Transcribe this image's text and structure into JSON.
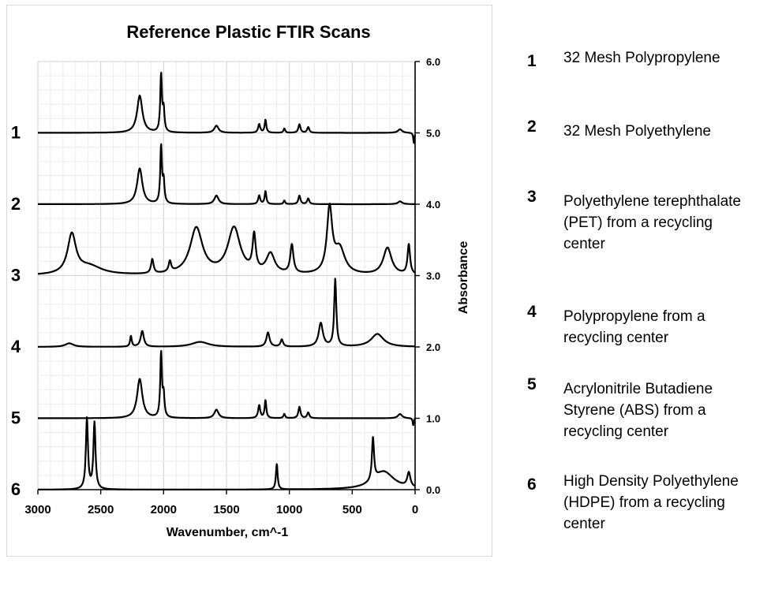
{
  "chart_data": {
    "type": "line",
    "title": "Reference Plastic FTIR Scans",
    "xlabel": "Wavenumber, cm^-1",
    "ylabel": "Absorbance",
    "xlim": [
      3000,
      0
    ],
    "ylim": [
      0.0,
      6.0
    ],
    "x_reversed": true,
    "grid": true,
    "xticks": [
      "3000",
      "2500",
      "2000",
      "1500",
      "1000",
      "500",
      "0"
    ],
    "yticks": [
      "6.0",
      "5.0",
      "4.0",
      "3.0",
      "2.0",
      "1.0",
      "0.0"
    ],
    "series_labels": [
      "1",
      "2",
      "3",
      "4",
      "5",
      "6"
    ],
    "series": [
      {
        "name": "1",
        "baseline": 5.0,
        "peaks": [
          [
            2190,
            0.52,
            25
          ],
          [
            2020,
            0.8,
            8
          ],
          [
            2000,
            0.3,
            8
          ],
          [
            1580,
            0.1,
            20
          ],
          [
            1240,
            0.12,
            10
          ],
          [
            1190,
            0.18,
            8
          ],
          [
            1040,
            0.06,
            8
          ],
          [
            920,
            0.12,
            10
          ],
          [
            850,
            0.08,
            10
          ],
          [
            120,
            0.05,
            20
          ]
        ],
        "dips": [
          [
            10,
            0.15,
            5
          ]
        ]
      },
      {
        "name": "2",
        "baseline": 4.0,
        "peaks": [
          [
            2190,
            0.5,
            25
          ],
          [
            2020,
            0.8,
            8
          ],
          [
            2000,
            0.3,
            8
          ],
          [
            1580,
            0.12,
            20
          ],
          [
            1240,
            0.12,
            10
          ],
          [
            1190,
            0.18,
            8
          ],
          [
            1040,
            0.05,
            8
          ],
          [
            920,
            0.12,
            10
          ],
          [
            850,
            0.08,
            10
          ],
          [
            120,
            0.04,
            20
          ]
        ],
        "dips": []
      },
      {
        "name": "3",
        "baseline": 3.0,
        "peaks": [
          [
            2730,
            0.55,
            40
          ],
          [
            2590,
            0.12,
            120
          ],
          [
            2090,
            0.2,
            12
          ],
          [
            1950,
            0.15,
            12
          ],
          [
            1740,
            0.65,
            60
          ],
          [
            1440,
            0.65,
            60
          ],
          [
            1280,
            0.5,
            15
          ],
          [
            1150,
            0.28,
            40
          ],
          [
            980,
            0.4,
            15
          ],
          [
            680,
            0.9,
            25
          ],
          [
            600,
            0.35,
            50
          ],
          [
            220,
            0.38,
            40
          ],
          [
            50,
            0.42,
            12
          ]
        ],
        "dips": []
      },
      {
        "name": "4",
        "baseline": 2.0,
        "peaks": [
          [
            2750,
            0.05,
            40
          ],
          [
            2260,
            0.15,
            8
          ],
          [
            2170,
            0.22,
            15
          ],
          [
            1710,
            0.07,
            80
          ],
          [
            1170,
            0.2,
            15
          ],
          [
            1060,
            0.1,
            12
          ],
          [
            750,
            0.33,
            20
          ],
          [
            635,
            0.95,
            10
          ],
          [
            300,
            0.18,
            60
          ]
        ],
        "dips": []
      },
      {
        "name": "5",
        "baseline": 1.0,
        "peaks": [
          [
            2190,
            0.55,
            25
          ],
          [
            2020,
            0.9,
            8
          ],
          [
            2000,
            0.3,
            8
          ],
          [
            1580,
            0.12,
            20
          ],
          [
            1240,
            0.18,
            10
          ],
          [
            1190,
            0.25,
            8
          ],
          [
            1040,
            0.06,
            8
          ],
          [
            920,
            0.16,
            10
          ],
          [
            850,
            0.08,
            10
          ],
          [
            120,
            0.06,
            20
          ]
        ],
        "dips": [
          [
            15,
            0.1,
            5
          ]
        ]
      },
      {
        "name": "6",
        "baseline": 0.0,
        "peaks": [
          [
            2610,
            0.99,
            10
          ],
          [
            2550,
            0.93,
            10
          ],
          [
            1100,
            0.36,
            8
          ],
          [
            335,
            0.6,
            10
          ],
          [
            250,
            0.25,
            100
          ],
          [
            50,
            0.2,
            15
          ]
        ],
        "dips": []
      }
    ]
  },
  "legend": [
    {
      "num": "1",
      "text": "32 Mesh Polypropylene"
    },
    {
      "num": "2",
      "text": "32 Mesh Polyethylene"
    },
    {
      "num": "3",
      "text": "Polyethylene terephthalate (PET) from a recycling center"
    },
    {
      "num": "4",
      "text": "Polypropylene from a recycling center"
    },
    {
      "num": "5",
      "text": "Acrylonitrile Butadiene Styrene (ABS) from a recycling center"
    },
    {
      "num": "6",
      "text": "High Density Polyethylene (HDPE) from a recycling center"
    }
  ]
}
